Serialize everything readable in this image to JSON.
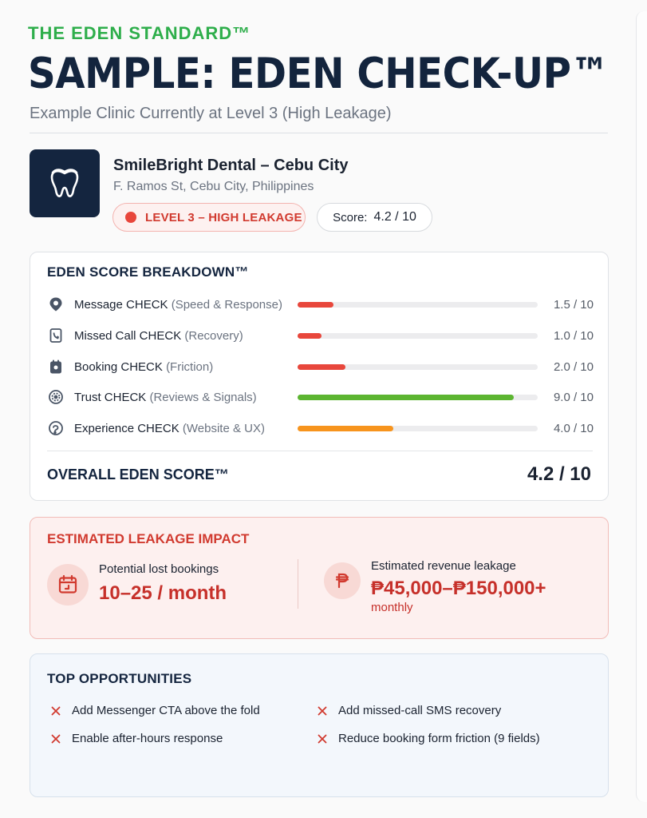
{
  "header": {
    "brand": "THE EDEN STANDARD™",
    "headline": "SAMPLE: EDEN CHECK-UP™",
    "subtitle": "Example Clinic Currently at Level 3 (High Leakage)"
  },
  "clinic": {
    "logo_icon": "tooth-icon",
    "name": "SmileBright Dental – Cebu City",
    "address": "F. Ramos St, Cebu City, Philippines",
    "level_badge": "LEVEL 3 – HIGH LEAKAGE",
    "score_label": "Score:",
    "score_value": "4.2 / 10"
  },
  "breakdown": {
    "title": "EDEN SCORE BREAKDOWN™",
    "metrics": [
      {
        "icon": "message-pin-icon",
        "label": "Message CHECK",
        "detail": "(Speed & Response)",
        "value": "1.5 / 10",
        "score": 1.5,
        "color": "#e8473c"
      },
      {
        "icon": "missed-call-icon",
        "label": "Missed Call CHECK",
        "detail": "(Recovery)",
        "value": "1.0 / 10",
        "score": 1.0,
        "color": "#e8473c"
      },
      {
        "icon": "booking-icon",
        "label": "Booking CHECK",
        "detail": "(Friction)",
        "value": "2.0 / 10",
        "score": 2.0,
        "color": "#e8473c"
      },
      {
        "icon": "trust-badge-icon",
        "label": "Trust CHECK",
        "detail": "(Reviews & Signals)",
        "value": "9.0 / 10",
        "score": 9.0,
        "color": "#5cb531"
      },
      {
        "icon": "experience-icon",
        "label": "Experience CHECK",
        "detail": "(Website & UX)",
        "value": "4.0 / 10",
        "score": 4.0,
        "color": "#f7941d"
      }
    ],
    "max_score": 10,
    "overall_label": "OVERALL EDEN SCORE™",
    "overall_value": "4.2 / 10"
  },
  "leakage": {
    "title": "ESTIMATED LEAKAGE IMPACT",
    "bookings_icon": "calendar-icon",
    "bookings_label": "Potential lost bookings",
    "bookings_value": "10–25 / month",
    "revenue_icon": "peso-icon",
    "revenue_label": "Estimated revenue leakage",
    "revenue_value": "₱45,000–₱150,000+",
    "revenue_period": "monthly"
  },
  "opportunities": {
    "title": "TOP OPPORTUNITIES",
    "items": [
      "Add Messenger CTA above the fold",
      "Add missed-call SMS recovery",
      "Enable after-hours response",
      "Reduce booking form friction (9 fields)"
    ]
  }
}
